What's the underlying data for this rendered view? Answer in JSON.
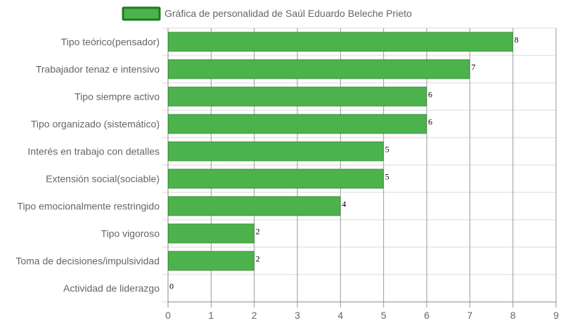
{
  "chart_data": {
    "type": "bar",
    "orientation": "horizontal",
    "title": "",
    "legend": {
      "label": "Gráfica de personalidad de Saúl Eduardo Beleche Prieto",
      "position": "top"
    },
    "categories": [
      "Tipo teórico(pensador)",
      "Trabajador tenaz e intensivo",
      "Tipo siempre activo",
      "Tipo organizado (sistemático)",
      "Interés en trabajo con detalles",
      "Extensión social(sociable)",
      "Tipo emocionalmente restringido",
      "Tipo vigoroso",
      "Toma de decisiones/impulsividad",
      "Actividad de liderazgo"
    ],
    "values": [
      8,
      7,
      6,
      6,
      5,
      5,
      4,
      2,
      2,
      0
    ],
    "xlim": [
      0,
      9
    ],
    "xticks": [
      "0",
      "1",
      "2",
      "3",
      "4",
      "5",
      "6",
      "7",
      "8",
      "9"
    ],
    "grid": true,
    "colors": {
      "bar_fill": "#4cb34c",
      "bar_border": "#3a8f3a",
      "legend_fill": "#4cb34c",
      "legend_border": "#1f7a1f",
      "grid": "#d9d9d9",
      "vgrid": "#9a9a9a"
    }
  }
}
